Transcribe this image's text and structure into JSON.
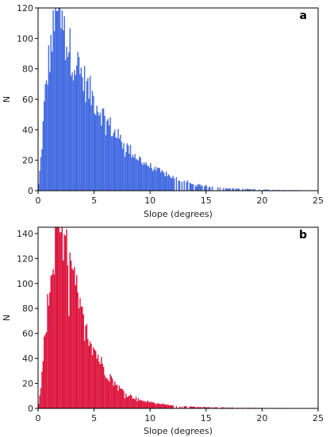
{
  "chart_data": [
    {
      "type": "bar",
      "panel_label": "a",
      "xlabel": "Slope (degrees)",
      "ylabel": "N",
      "xlim": [
        0,
        25
      ],
      "ylim": [
        0,
        120
      ],
      "xticks": [
        0,
        5,
        10,
        15,
        20,
        25
      ],
      "yticks": [
        0,
        20,
        40,
        60,
        80,
        100,
        120
      ],
      "color": "#4169e1",
      "bin_width": 0.1,
      "peak_x": 1.7,
      "peak_n": 118,
      "x_max": 23.5,
      "envelope": [
        [
          0,
          0
        ],
        [
          0.3,
          25
        ],
        [
          0.6,
          60
        ],
        [
          1.0,
          88
        ],
        [
          1.5,
          110
        ],
        [
          1.8,
          116
        ],
        [
          2.2,
          105
        ],
        [
          2.8,
          93
        ],
        [
          3.5,
          82
        ],
        [
          4.5,
          66
        ],
        [
          5,
          60
        ],
        [
          6,
          47
        ],
        [
          7,
          36
        ],
        [
          8,
          28
        ],
        [
          9,
          21
        ],
        [
          10,
          16
        ],
        [
          11,
          12
        ],
        [
          12,
          9
        ],
        [
          13,
          6
        ],
        [
          14,
          4
        ],
        [
          15,
          3
        ],
        [
          17,
          1.5
        ],
        [
          19,
          1
        ],
        [
          21,
          0.5
        ],
        [
          23.5,
          0.3
        ],
        [
          25,
          0
        ]
      ]
    },
    {
      "type": "bar",
      "panel_label": "b",
      "xlabel": "Slope (degrees)",
      "ylabel": "N",
      "xlim": [
        0,
        25
      ],
      "ylim": [
        0,
        145
      ],
      "xticks": [
        0,
        5,
        10,
        15,
        20,
        25
      ],
      "yticks": [
        0,
        20,
        40,
        60,
        80,
        100,
        120,
        140
      ],
      "color": "#dc143c",
      "bin_width": 0.1,
      "peak_x": 2.0,
      "peak_n": 141,
      "x_max": 22,
      "envelope": [
        [
          0,
          0
        ],
        [
          0.3,
          20
        ],
        [
          0.6,
          55
        ],
        [
          1.0,
          95
        ],
        [
          1.5,
          122
        ],
        [
          2.0,
          136
        ],
        [
          2.5,
          125
        ],
        [
          3.0,
          108
        ],
        [
          3.5,
          88
        ],
        [
          4.0,
          70
        ],
        [
          5,
          48
        ],
        [
          6,
          30
        ],
        [
          7,
          18
        ],
        [
          8,
          11
        ],
        [
          9,
          7
        ],
        [
          10,
          5
        ],
        [
          11,
          3.5
        ],
        [
          12,
          2.5
        ],
        [
          13,
          1.5
        ],
        [
          15,
          1
        ],
        [
          18,
          0.5
        ],
        [
          22,
          0.3
        ],
        [
          25,
          0
        ]
      ]
    }
  ]
}
